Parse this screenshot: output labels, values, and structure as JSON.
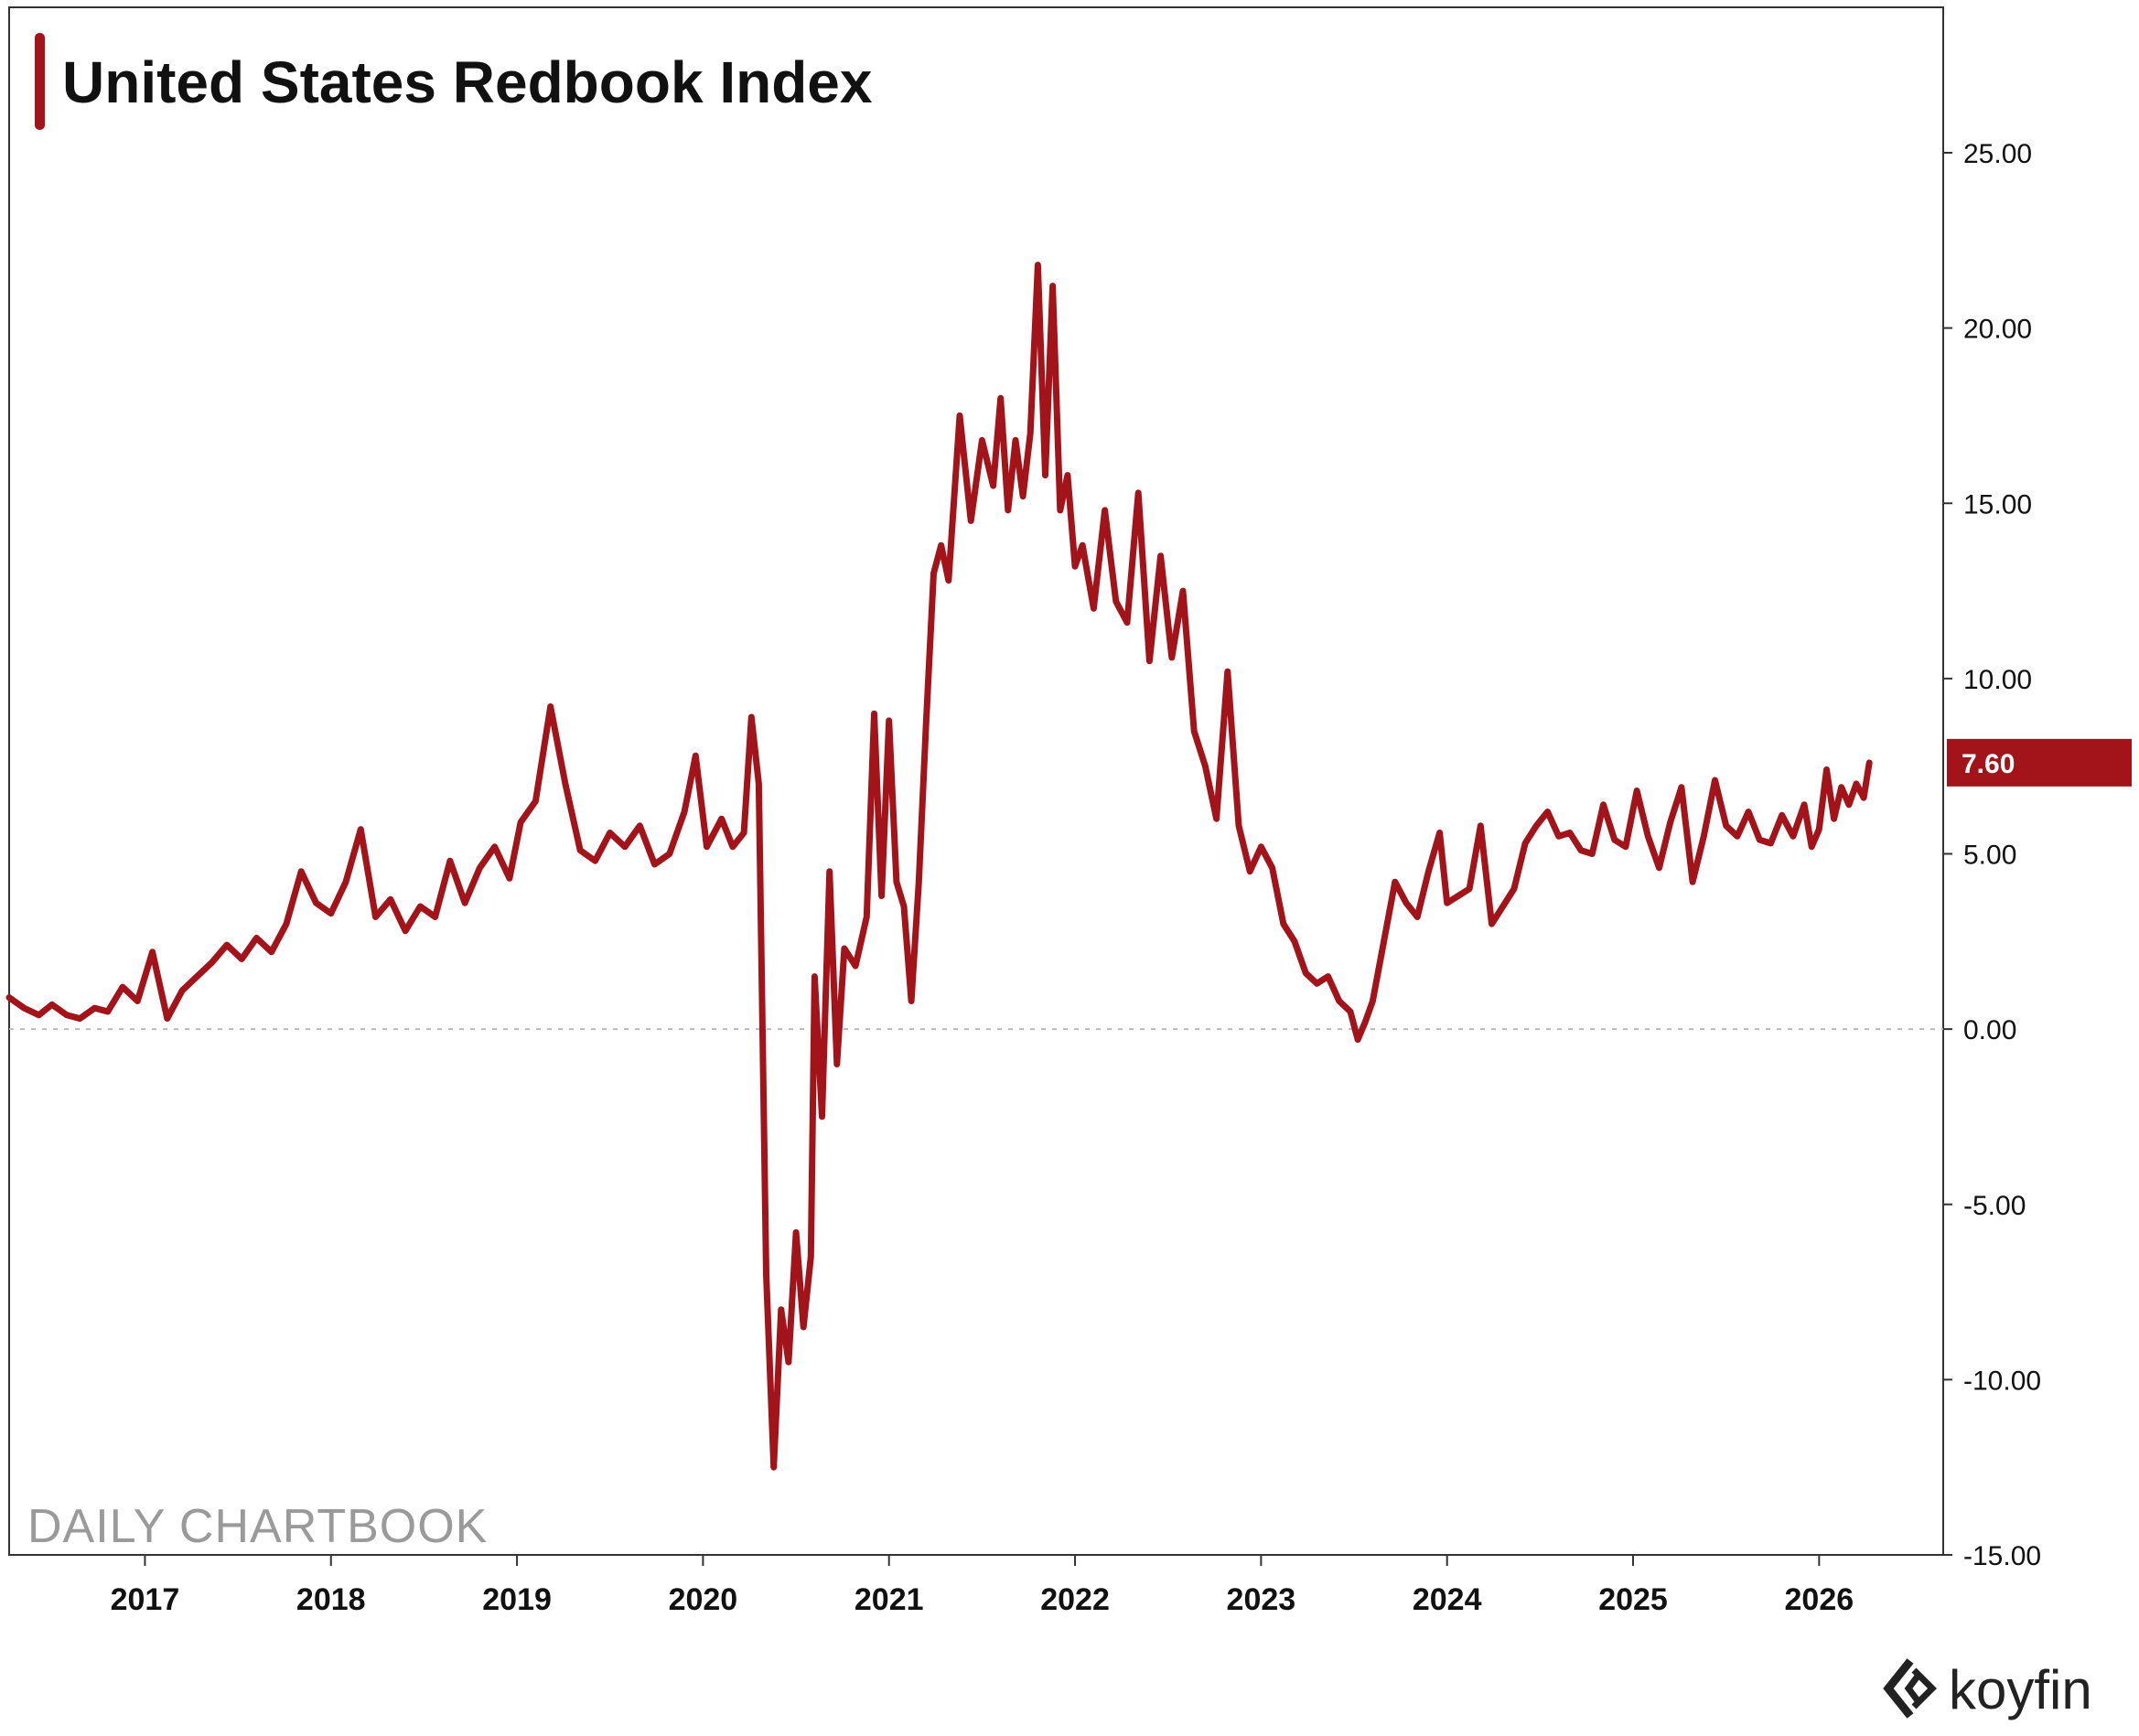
{
  "chart_data": {
    "type": "line",
    "title": "United States Redbook Index",
    "series": [
      {
        "name": "United States Redbook Index",
        "color": "#a3141a",
        "last_value_label": "7.60",
        "x": [
          2016.27,
          2016.35,
          2016.43,
          2016.5,
          2016.58,
          2016.65,
          2016.73,
          2016.8,
          2016.88,
          2016.96,
          2017.04,
          2017.12,
          2017.2,
          2017.28,
          2017.36,
          2017.44,
          2017.52,
          2017.6,
          2017.68,
          2017.76,
          2017.84,
          2017.92,
          2018.0,
          2018.08,
          2018.16,
          2018.24,
          2018.32,
          2018.4,
          2018.48,
          2018.56,
          2018.64,
          2018.72,
          2018.8,
          2018.88,
          2018.96,
          2019.02,
          2019.1,
          2019.18,
          2019.26,
          2019.34,
          2019.42,
          2019.5,
          2019.58,
          2019.66,
          2019.74,
          2019.82,
          2019.9,
          2019.96,
          2020.02,
          2020.1,
          2020.16,
          2020.22,
          2020.26,
          2020.3,
          2020.34,
          2020.38,
          2020.42,
          2020.46,
          2020.5,
          2020.54,
          2020.58,
          2020.6,
          2020.64,
          2020.68,
          2020.72,
          2020.76,
          2020.82,
          2020.88,
          2020.92,
          2020.96,
          2021.0,
          2021.04,
          2021.08,
          2021.12,
          2021.16,
          2021.2,
          2021.24,
          2021.28,
          2021.32,
          2021.38,
          2021.44,
          2021.5,
          2021.56,
          2021.6,
          2021.64,
          2021.68,
          2021.72,
          2021.76,
          2021.8,
          2021.84,
          2021.88,
          2021.92,
          2021.96,
          2022.0,
          2022.04,
          2022.1,
          2022.16,
          2022.22,
          2022.28,
          2022.34,
          2022.4,
          2022.46,
          2022.52,
          2022.58,
          2022.64,
          2022.7,
          2022.76,
          2022.82,
          2022.88,
          2022.94,
          2023.0,
          2023.06,
          2023.12,
          2023.18,
          2023.24,
          2023.3,
          2023.36,
          2023.42,
          2023.48,
          2023.52,
          2023.56,
          2023.6,
          2023.66,
          2023.72,
          2023.78,
          2023.84,
          2023.9,
          2023.96,
          2024.0,
          2024.06,
          2024.12,
          2024.18,
          2024.24,
          2024.3,
          2024.36,
          2024.42,
          2024.48,
          2024.54,
          2024.6,
          2024.66,
          2024.72,
          2024.78,
          2024.84,
          2024.9,
          2024.96,
          2025.02,
          2025.08,
          2025.14,
          2025.2,
          2025.26,
          2025.32,
          2025.38,
          2025.44,
          2025.5,
          2025.56,
          2025.62,
          2025.68,
          2025.74,
          2025.8,
          2025.86,
          2025.92,
          2025.96,
          2026.0,
          2026.04,
          2026.08,
          2026.12,
          2026.16,
          2026.2,
          2026.24,
          2026.27
        ],
        "values": [
          0.9,
          0.6,
          0.4,
          0.7,
          0.4,
          0.3,
          0.6,
          0.5,
          1.2,
          0.8,
          2.2,
          0.3,
          1.1,
          1.5,
          1.9,
          2.4,
          2.0,
          2.6,
          2.2,
          3.0,
          4.5,
          3.6,
          3.3,
          4.2,
          5.7,
          3.2,
          3.7,
          2.8,
          3.5,
          3.2,
          4.8,
          3.6,
          4.6,
          5.2,
          4.3,
          5.9,
          6.5,
          9.2,
          7.0,
          5.1,
          4.8,
          5.6,
          5.2,
          5.8,
          4.7,
          5.0,
          6.2,
          7.8,
          5.2,
          6.0,
          5.2,
          5.6,
          8.9,
          7.0,
          -7.0,
          -12.5,
          -8.0,
          -9.5,
          -5.8,
          -8.5,
          -6.5,
          1.5,
          -2.5,
          4.5,
          -1.0,
          2.3,
          1.8,
          3.2,
          9.0,
          3.8,
          8.8,
          4.2,
          3.5,
          0.8,
          4.2,
          8.8,
          13.0,
          13.8,
          12.8,
          17.5,
          14.5,
          16.8,
          15.5,
          18.0,
          14.8,
          16.8,
          15.2,
          17.0,
          21.8,
          15.8,
          21.2,
          14.8,
          15.8,
          13.2,
          13.8,
          12.0,
          14.8,
          12.2,
          11.6,
          15.3,
          10.5,
          13.5,
          10.6,
          12.5,
          8.5,
          7.5,
          6.0,
          10.2,
          5.8,
          4.5,
          5.2,
          4.6,
          3.0,
          2.5,
          1.6,
          1.3,
          1.5,
          0.8,
          0.5,
          -0.3,
          0.2,
          0.8,
          2.5,
          4.2,
          3.6,
          3.2,
          4.5,
          5.6,
          3.6,
          3.8,
          4.0,
          5.8,
          3.0,
          3.5,
          4.0,
          5.3,
          5.8,
          6.2,
          5.5,
          5.6,
          5.1,
          5.0,
          6.4,
          5.4,
          5.2,
          6.8,
          5.5,
          4.6,
          5.9,
          6.9,
          4.2,
          5.5,
          7.1,
          5.8,
          5.5,
          6.2,
          5.4,
          5.3,
          6.1,
          5.5,
          6.4,
          5.2,
          5.7,
          7.4,
          6.0,
          6.9,
          6.4,
          7.0,
          6.6,
          7.6
        ]
      }
    ],
    "x_ticks": [
      "2017",
      "2018",
      "2019",
      "2020",
      "2021",
      "2022",
      "2023",
      "2024",
      "2025",
      "2026"
    ],
    "x_tick_values": [
      2017,
      2018,
      2019,
      2020,
      2021,
      2022,
      2023,
      2024,
      2025,
      2026
    ],
    "xlim": [
      2016.27,
      2026.5
    ],
    "y_ticks": [
      "25.00",
      "20.00",
      "15.00",
      "10.00",
      "5.00",
      "0.00",
      "-5.00",
      "-10.00",
      "-15.00"
    ],
    "y_tick_values": [
      25,
      20,
      15,
      10,
      5,
      0,
      -5,
      -10,
      -15
    ],
    "ylim": [
      -15,
      29
    ],
    "zero_line": "dotted",
    "y_axis_position": "right",
    "xlabel": "",
    "ylabel": ""
  },
  "watermark": "DAILY CHARTBOOK",
  "brand": {
    "name": "koyfin",
    "icon": "koyfin-logo-icon"
  },
  "colors": {
    "series": "#a3141a",
    "accent_bar": "#a3141a",
    "axis": "#333333",
    "zero_line": "#bbbbbb"
  }
}
